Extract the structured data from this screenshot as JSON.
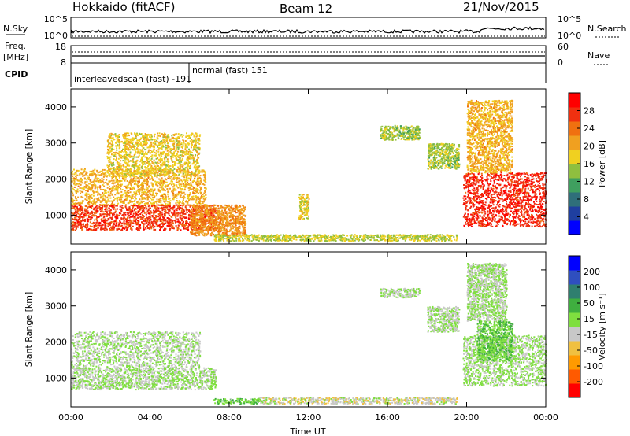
{
  "header": {
    "station": "Hokkaido (fitACF)",
    "beam": "Beam 12",
    "date": "21/Nov/2015"
  },
  "top_panels": {
    "nsky_label": "N.Sky",
    "nsky_ticks": [
      "10^5",
      "10^0"
    ],
    "nsearch_label": "N.Search",
    "nsearch_ticks": [
      "10^5",
      "10^0"
    ],
    "freq_label_1": "Freq.",
    "freq_label_2": "[MHz]",
    "freq_ticks": [
      "18",
      "8"
    ],
    "nave_label": "Nave",
    "nave_ticks": [
      "60",
      "0"
    ],
    "cpid_label": "CPID",
    "cpid_modes": [
      {
        "text": "interleavedscan (fast) -191"
      },
      {
        "text": "normal (fast) 151"
      }
    ]
  },
  "colors": {
    "power": [
      "#0000ff",
      "#1f3fa0",
      "#2f6f7a",
      "#3f9f5f",
      "#8fbf3f",
      "#f0d020",
      "#f0a020",
      "#f07010",
      "#f03010",
      "#ff0000"
    ],
    "velocity": [
      "#ff0000",
      "#ff5a00",
      "#ff9a00",
      "#f0c040",
      "#c8c8c8",
      "#7fdf3f",
      "#3faf3f",
      "#2f7f6f",
      "#2f4fbf",
      "#0000ff"
    ]
  },
  "chart_data": [
    {
      "type": "heatmap",
      "ylabel": "Slant Range [km]",
      "ylim": [
        200,
        4500
      ],
      "yticks": [
        "1000",
        "2000",
        "3000",
        "4000"
      ],
      "xlim": [
        0,
        24
      ],
      "colorbar": {
        "label": "Power [dB]",
        "ticks": [
          "4",
          "8",
          "12",
          "16",
          "20",
          "24",
          "28"
        ],
        "range": [
          0,
          32
        ]
      },
      "regions": [
        {
          "t0": 0.0,
          "t1": 7.3,
          "r0": 600,
          "r1": 1300,
          "value": 27
        },
        {
          "t0": 0.0,
          "t1": 6.8,
          "r0": 1300,
          "r1": 2300,
          "value": 20
        },
        {
          "t0": 1.8,
          "t1": 6.5,
          "r0": 2100,
          "r1": 3300,
          "value": 18
        },
        {
          "t0": 6.0,
          "t1": 8.8,
          "r0": 450,
          "r1": 1300,
          "value": 22
        },
        {
          "t0": 7.2,
          "t1": 19.5,
          "r0": 300,
          "r1": 480,
          "value": 16
        },
        {
          "t0": 11.5,
          "t1": 12.0,
          "r0": 900,
          "r1": 1600,
          "value": 17
        },
        {
          "t0": 15.6,
          "t1": 17.6,
          "r0": 3100,
          "r1": 3500,
          "value": 15
        },
        {
          "t0": 18.0,
          "t1": 19.6,
          "r0": 2300,
          "r1": 3000,
          "value": 15
        },
        {
          "t0": 19.8,
          "t1": 24.0,
          "r0": 700,
          "r1": 2200,
          "value": 28
        },
        {
          "t0": 20.0,
          "t1": 22.3,
          "r0": 2200,
          "r1": 4200,
          "value": 20
        }
      ]
    },
    {
      "type": "heatmap",
      "ylabel": "Slant Range [km]",
      "xlabel": "Time UT",
      "ylim": [
        200,
        4500
      ],
      "yticks": [
        "1000",
        "2000",
        "3000",
        "4000"
      ],
      "xlim": [
        0,
        24
      ],
      "xticks": [
        "00:00",
        "04:00",
        "08:00",
        "12:00",
        "16:00",
        "20:00",
        "00:00"
      ],
      "colorbar": {
        "label": "Velocity [m s⁻¹]",
        "ticks": [
          "200",
          "100",
          "50",
          "15",
          "-15",
          "-50",
          "-100",
          "-200"
        ],
        "range": [
          -250,
          250
        ]
      },
      "regions": [
        {
          "t0": 0.0,
          "t1": 7.3,
          "r0": 700,
          "r1": 1300,
          "value": 0
        },
        {
          "t0": 0.0,
          "t1": 6.5,
          "r0": 1300,
          "r1": 2300,
          "value": -5
        },
        {
          "t0": 7.2,
          "t1": 9.5,
          "r0": 300,
          "r1": 450,
          "value": 40
        },
        {
          "t0": 9.5,
          "t1": 19.5,
          "r0": 300,
          "r1": 480,
          "value": -30
        },
        {
          "t0": 15.6,
          "t1": 17.6,
          "r0": 3250,
          "r1": 3500,
          "value": 0
        },
        {
          "t0": 18.0,
          "t1": 19.6,
          "r0": 2300,
          "r1": 3000,
          "value": 0
        },
        {
          "t0": 19.8,
          "t1": 24.0,
          "r0": 800,
          "r1": 2200,
          "value": 5
        },
        {
          "t0": 20.5,
          "t1": 22.3,
          "r0": 1500,
          "r1": 2600,
          "value": 40
        },
        {
          "t0": 20.0,
          "t1": 22.0,
          "r0": 2600,
          "r1": 4200,
          "value": 0
        }
      ]
    }
  ]
}
